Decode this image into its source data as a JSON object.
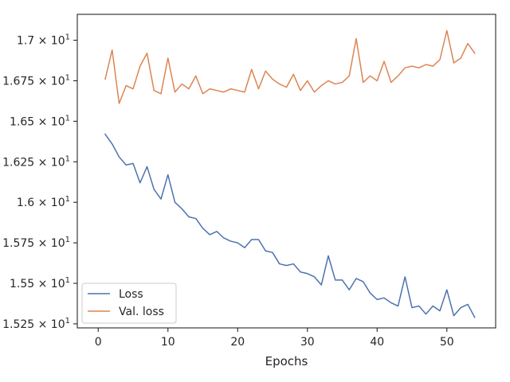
{
  "chart_data": {
    "type": "line",
    "title": "",
    "xlabel": "Epochs",
    "ylabel": "",
    "xlim": [
      -3,
      57
    ],
    "ylim": [
      15.225,
      17.16
    ],
    "grid": false,
    "legend_position": "lower-left",
    "x_ticks": [
      {
        "value": 0,
        "label": "0"
      },
      {
        "value": 10,
        "label": "10"
      },
      {
        "value": 20,
        "label": "20"
      },
      {
        "value": 30,
        "label": "30"
      },
      {
        "value": 40,
        "label": "40"
      },
      {
        "value": 50,
        "label": "50"
      }
    ],
    "y_ticks": [
      {
        "value": 15.25,
        "label": "1.525 × 10"
      },
      {
        "value": 15.5,
        "label": "1.55 × 10"
      },
      {
        "value": 15.75,
        "label": "1.575 × 10"
      },
      {
        "value": 16.0,
        "label": "1.6 × 10"
      },
      {
        "value": 16.25,
        "label": "1.625 × 10"
      },
      {
        "value": 16.5,
        "label": "1.65 × 10"
      },
      {
        "value": 16.75,
        "label": "1.675 × 10"
      },
      {
        "value": 17.0,
        "label": "1.7 × 10"
      }
    ],
    "y_tick_exponent": "1",
    "x": [
      1,
      2,
      3,
      4,
      5,
      6,
      7,
      8,
      9,
      10,
      11,
      12,
      13,
      14,
      15,
      16,
      17,
      18,
      19,
      20,
      21,
      22,
      23,
      24,
      25,
      26,
      27,
      28,
      29,
      30,
      31,
      32,
      33,
      34,
      35,
      36,
      37,
      38,
      39,
      40,
      41,
      42,
      43,
      44,
      45,
      46,
      47,
      48,
      49,
      50,
      51,
      52,
      53,
      54
    ],
    "series": [
      {
        "name": "Loss",
        "color": "#4c72b0",
        "values": [
          16.42,
          16.36,
          16.28,
          16.23,
          16.24,
          16.12,
          16.22,
          16.08,
          16.02,
          16.17,
          16.0,
          15.96,
          15.91,
          15.9,
          15.84,
          15.8,
          15.82,
          15.78,
          15.76,
          15.75,
          15.72,
          15.77,
          15.77,
          15.7,
          15.69,
          15.62,
          15.61,
          15.62,
          15.57,
          15.56,
          15.54,
          15.49,
          15.67,
          15.52,
          15.52,
          15.46,
          15.53,
          15.51,
          15.44,
          15.4,
          15.41,
          15.38,
          15.36,
          15.54,
          15.35,
          15.36,
          15.31,
          15.36,
          15.33,
          15.46,
          15.3,
          15.35,
          15.37,
          15.29
        ]
      },
      {
        "name": "Val. loss",
        "color": "#dd8452",
        "values": [
          16.76,
          16.94,
          16.61,
          16.72,
          16.7,
          16.84,
          16.92,
          16.69,
          16.67,
          16.89,
          16.68,
          16.73,
          16.7,
          16.78,
          16.67,
          16.7,
          16.69,
          16.68,
          16.7,
          16.69,
          16.68,
          16.82,
          16.7,
          16.81,
          16.76,
          16.73,
          16.71,
          16.79,
          16.69,
          16.75,
          16.68,
          16.72,
          16.75,
          16.73,
          16.74,
          16.78,
          17.01,
          16.74,
          16.78,
          16.75,
          16.87,
          16.74,
          16.78,
          16.83,
          16.84,
          16.83,
          16.85,
          16.84,
          16.88,
          17.06,
          16.86,
          16.89,
          16.98,
          16.92
        ]
      }
    ]
  }
}
